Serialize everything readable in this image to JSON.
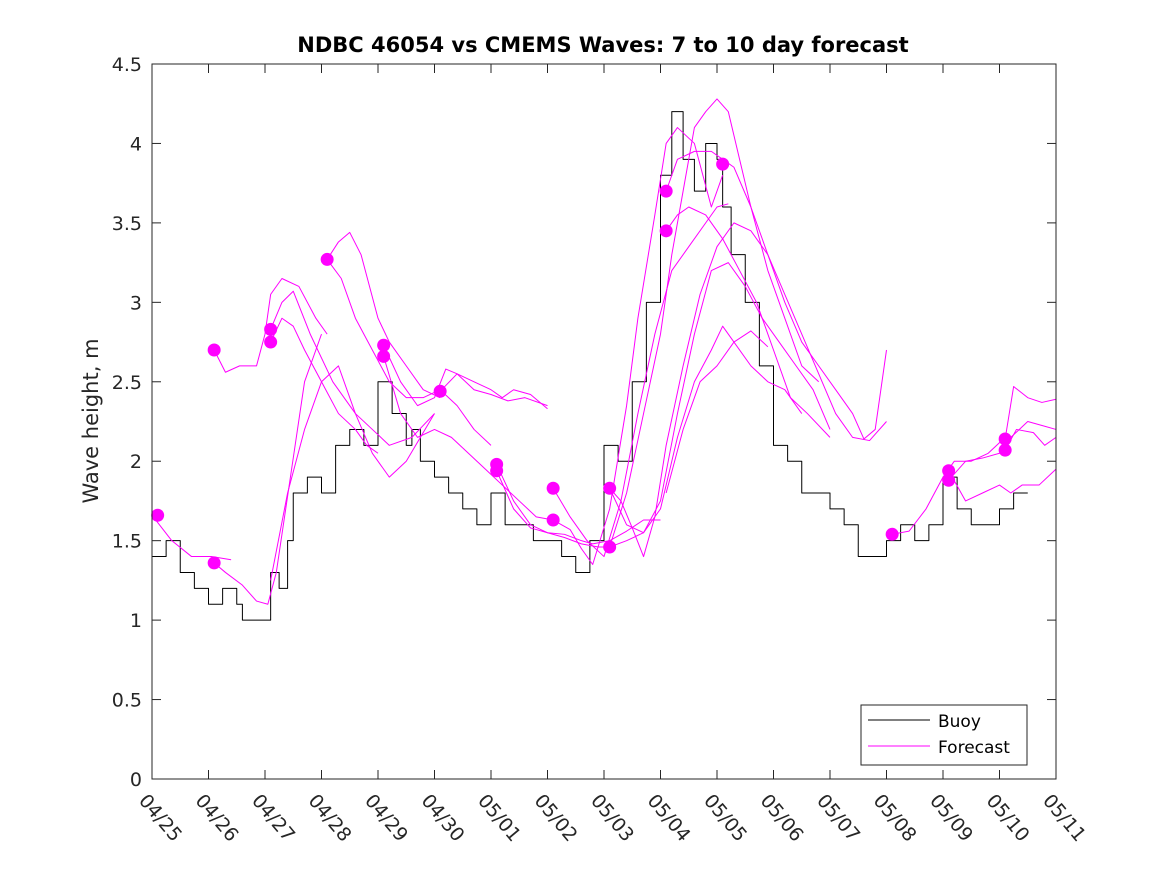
{
  "chart_data": {
    "type": "line",
    "title": "NDBC 46054 vs CMEMS Waves: 7 to 10 day forecast",
    "xlabel": "",
    "ylabel": "Wave height, m",
    "xlim": [
      0,
      16
    ],
    "ylim": [
      0,
      4.5
    ],
    "grid": false,
    "legend_position": "bottom-right",
    "x_tick_labels": [
      "04/25",
      "04/26",
      "04/27",
      "04/28",
      "04/29",
      "04/30",
      "05/01",
      "05/02",
      "05/03",
      "05/04",
      "05/05",
      "05/06",
      "05/07",
      "05/08",
      "05/09",
      "05/10",
      "05/11"
    ],
    "y_ticks": [
      0,
      0.5,
      1,
      1.5,
      2,
      2.5,
      3,
      3.5,
      4,
      4.5
    ],
    "y_tick_labels": [
      "0",
      "0.5",
      "1",
      "1.5",
      "2",
      "2.5",
      "3",
      "3.5",
      "4",
      "4.5"
    ],
    "colors": {
      "buoy": "#000000",
      "forecast": "#ff00ff"
    },
    "series": [
      {
        "name": "Buoy",
        "x": [
          0.0,
          0.25,
          0.5,
          0.6,
          0.75,
          1.0,
          1.25,
          1.5,
          1.6,
          1.75,
          2.0,
          2.1,
          2.25,
          2.4,
          2.5,
          2.75,
          3.0,
          3.25,
          3.5,
          3.75,
          4.0,
          4.25,
          4.5,
          4.6,
          4.75,
          5.0,
          5.25,
          5.5,
          5.75,
          6.0,
          6.25,
          6.5,
          6.75,
          7.0,
          7.25,
          7.5,
          7.75,
          8.0,
          8.25,
          8.5,
          8.75,
          9.0,
          9.2,
          9.4,
          9.6,
          9.8,
          10.0,
          10.1,
          10.25,
          10.5,
          10.75,
          11.0,
          11.25,
          11.5,
          11.75,
          12.0,
          12.25,
          12.5,
          12.75,
          13.0,
          13.25,
          13.5,
          13.75,
          14.0,
          14.25,
          14.5,
          14.75,
          15.0,
          15.25,
          15.5
        ],
        "y": [
          1.4,
          1.5,
          1.3,
          1.3,
          1.2,
          1.1,
          1.2,
          1.1,
          1.0,
          1.0,
          1.0,
          1.3,
          1.2,
          1.5,
          1.8,
          1.9,
          1.8,
          2.1,
          2.2,
          2.1,
          2.5,
          2.3,
          2.1,
          2.2,
          2.0,
          1.9,
          1.8,
          1.7,
          1.6,
          1.8,
          1.6,
          1.6,
          1.5,
          1.5,
          1.4,
          1.3,
          1.5,
          2.1,
          2.0,
          2.5,
          3.0,
          3.8,
          4.2,
          3.9,
          3.7,
          4.0,
          3.9,
          3.6,
          3.3,
          3.0,
          2.6,
          2.1,
          2.0,
          1.8,
          1.8,
          1.7,
          1.6,
          1.4,
          1.4,
          1.5,
          1.6,
          1.5,
          1.6,
          1.9,
          1.7,
          1.6,
          1.6,
          1.7,
          1.8,
          1.8
        ]
      },
      {
        "name": "Forecast",
        "x": [
          0.0,
          0.35,
          0.7,
          1.05,
          1.4
        ],
        "y": [
          1.66,
          1.5,
          1.4,
          1.4,
          1.38
        ]
      },
      {
        "name": "",
        "x": [
          1.1,
          1.3,
          1.6,
          1.85,
          2.05,
          2.2,
          2.45,
          2.7,
          3.0
        ],
        "y": [
          1.36,
          1.3,
          1.22,
          1.12,
          1.1,
          1.3,
          1.9,
          2.5,
          2.8
        ]
      },
      {
        "name": "",
        "x": [
          1.1,
          1.3,
          1.55,
          1.85,
          2.0,
          2.1,
          2.3,
          2.6,
          2.9,
          3.1
        ],
        "y": [
          2.7,
          2.56,
          2.6,
          2.6,
          2.8,
          3.05,
          3.15,
          3.1,
          2.9,
          2.8
        ]
      },
      {
        "name": "",
        "x": [
          2.1,
          2.3,
          2.5,
          2.8,
          3.2,
          3.6,
          3.9,
          4.2,
          4.6,
          5.0
        ],
        "y": [
          2.83,
          3.0,
          3.07,
          2.8,
          2.5,
          2.3,
          2.2,
          2.1,
          2.15,
          2.3
        ]
      },
      {
        "name": "",
        "x": [
          2.1,
          2.3,
          2.5,
          2.7,
          3.0,
          3.3,
          3.6,
          3.8,
          4.0
        ],
        "y": [
          2.75,
          2.9,
          2.85,
          2.7,
          2.5,
          2.3,
          2.2,
          2.1,
          2.05
        ]
      },
      {
        "name": "",
        "x": [
          2.1,
          2.4,
          2.7,
          3.0,
          3.3,
          3.6,
          3.9,
          4.2,
          4.5,
          5.0
        ],
        "y": [
          1.25,
          1.8,
          2.2,
          2.5,
          2.6,
          2.3,
          2.05,
          1.9,
          2.0,
          2.3
        ]
      },
      {
        "name": "",
        "x": [
          3.1,
          3.3,
          3.5,
          3.7,
          4.0,
          4.2,
          4.5,
          4.8,
          5.1
        ],
        "y": [
          3.27,
          3.38,
          3.44,
          3.3,
          2.9,
          2.75,
          2.6,
          2.45,
          2.4
        ]
      },
      {
        "name": "",
        "x": [
          3.1,
          3.35,
          3.6,
          3.9,
          4.2,
          4.5,
          4.8,
          5.1,
          5.4,
          5.7,
          6.0
        ],
        "y": [
          3.27,
          3.15,
          2.9,
          2.7,
          2.5,
          2.4,
          2.4,
          2.45,
          2.35,
          2.2,
          2.1
        ]
      },
      {
        "name": "",
        "x": [
          4.1,
          4.4,
          4.7,
          5.0,
          5.2,
          5.4,
          5.7,
          6.0,
          6.3,
          6.6,
          7.0
        ],
        "y": [
          2.73,
          2.5,
          2.35,
          2.4,
          2.58,
          2.55,
          2.45,
          2.42,
          2.38,
          2.4,
          2.35
        ]
      },
      {
        "name": "",
        "x": [
          4.1,
          4.4,
          4.7,
          5.0,
          5.3,
          5.6,
          5.9,
          6.2,
          6.5,
          6.8,
          7.1
        ],
        "y": [
          2.66,
          2.3,
          2.15,
          2.2,
          2.15,
          2.05,
          1.95,
          1.85,
          1.75,
          1.65,
          1.63
        ]
      },
      {
        "name": "",
        "x": [
          5.1,
          5.4,
          5.7,
          6.0,
          6.2,
          6.4,
          6.7,
          7.0
        ],
        "y": [
          2.44,
          2.55,
          2.5,
          2.45,
          2.4,
          2.45,
          2.42,
          2.33
        ]
      },
      {
        "name": "",
        "x": [
          6.1,
          6.4,
          6.7,
          7.0,
          7.3,
          7.6,
          7.9,
          8.1
        ],
        "y": [
          1.98,
          1.75,
          1.6,
          1.55,
          1.52,
          1.48,
          1.46,
          1.46
        ]
      },
      {
        "name": "",
        "x": [
          6.1,
          6.4,
          6.7,
          7.0,
          7.3,
          7.6,
          7.8,
          8.1,
          8.4,
          8.7,
          9.0
        ],
        "y": [
          1.94,
          1.7,
          1.58,
          1.55,
          1.54,
          1.5,
          1.48,
          1.5,
          1.56,
          1.63,
          1.63
        ]
      },
      {
        "name": "",
        "x": [
          7.1,
          7.4,
          7.7,
          8.0,
          8.3,
          8.6,
          8.9,
          9.2,
          9.5,
          9.8,
          10.0,
          10.2
        ],
        "y": [
          1.83,
          1.65,
          1.5,
          1.4,
          1.75,
          2.3,
          2.8,
          3.2,
          3.35,
          3.5,
          3.6,
          3.62
        ]
      },
      {
        "name": "",
        "x": [
          7.1,
          7.4,
          7.6,
          7.8,
          8.1,
          8.4,
          8.6,
          8.9,
          9.1,
          9.3,
          9.6,
          9.9,
          10.1
        ],
        "y": [
          1.63,
          1.57,
          1.45,
          1.35,
          1.7,
          2.35,
          2.9,
          3.55,
          4.0,
          4.1,
          4.0,
          3.6,
          3.8
        ]
      },
      {
        "name": "",
        "x": [
          8.1,
          8.4,
          8.7,
          9.0,
          9.2,
          9.4,
          9.6,
          9.8,
          10.0,
          10.2,
          10.4,
          10.6,
          10.9,
          11.2,
          11.5,
          11.8
        ],
        "y": [
          1.46,
          1.8,
          2.3,
          2.8,
          3.3,
          3.7,
          4.1,
          4.2,
          4.28,
          4.2,
          3.9,
          3.6,
          3.2,
          2.9,
          2.6,
          2.5
        ]
      },
      {
        "name": "",
        "x": [
          8.1,
          8.3,
          8.5,
          8.7,
          8.9,
          9.1,
          9.4,
          9.7,
          10.0,
          10.3,
          10.6,
          10.9,
          11.2,
          11.5,
          11.8,
          12.1,
          12.4,
          12.7,
          13.0
        ],
        "y": [
          1.83,
          1.75,
          1.58,
          1.4,
          1.65,
          2.1,
          2.6,
          3.05,
          3.35,
          3.5,
          3.45,
          3.3,
          3.05,
          2.8,
          2.55,
          2.3,
          2.15,
          2.13,
          2.25
        ]
      },
      {
        "name": "",
        "x": [
          9.1,
          9.3,
          9.6,
          9.9,
          10.1,
          10.3,
          10.6,
          10.9,
          11.2,
          11.5,
          11.8,
          12.1,
          12.4,
          12.6,
          12.8,
          13.0
        ],
        "y": [
          3.7,
          3.9,
          3.95,
          3.95,
          3.9,
          3.85,
          3.6,
          3.3,
          3.0,
          2.75,
          2.6,
          2.45,
          2.3,
          2.14,
          2.2,
          2.7
        ]
      },
      {
        "name": "",
        "x": [
          9.1,
          9.3,
          9.5,
          9.8,
          10.1,
          10.4,
          10.7,
          11.0,
          11.3,
          11.6,
          12.0
        ],
        "y": [
          3.45,
          3.55,
          3.6,
          3.55,
          3.4,
          3.2,
          3.0,
          2.7,
          2.4,
          2.3,
          2.15
        ]
      },
      {
        "name": "",
        "x": [
          8.1,
          8.4,
          8.7,
          9.0,
          9.3,
          9.6,
          9.9,
          10.2,
          10.5,
          10.8,
          11.1,
          11.4,
          11.7,
          12.0
        ],
        "y": [
          1.83,
          1.6,
          1.55,
          1.75,
          2.3,
          2.8,
          3.2,
          3.25,
          3.1,
          2.9,
          2.75,
          2.6,
          2.45,
          2.2
        ]
      },
      {
        "name": "",
        "x": [
          8.1,
          8.4,
          8.7,
          9.0,
          9.3,
          9.6,
          9.9,
          10.1,
          10.3,
          10.6,
          10.9,
          11.2,
          11.5
        ],
        "y": [
          1.46,
          1.5,
          1.55,
          1.7,
          2.15,
          2.5,
          2.7,
          2.85,
          2.75,
          2.6,
          2.5,
          2.45,
          2.3
        ]
      },
      {
        "name": "",
        "x": [
          9.1,
          9.4,
          9.7,
          10.0,
          10.3,
          10.6,
          10.9
        ],
        "y": [
          1.8,
          2.2,
          2.5,
          2.6,
          2.75,
          2.82,
          2.72
        ]
      },
      {
        "name": "",
        "x": [
          13.1,
          13.4,
          13.7,
          14.0,
          14.2,
          14.5,
          14.8,
          15.1
        ],
        "y": [
          1.54,
          1.56,
          1.7,
          1.9,
          2.0,
          2.0,
          2.05,
          2.15
        ]
      },
      {
        "name": "",
        "x": [
          14.1,
          14.4,
          14.7,
          15.0,
          15.2,
          15.4,
          15.7,
          16.0
        ],
        "y": [
          1.94,
          1.75,
          1.8,
          1.85,
          1.8,
          1.85,
          1.85,
          1.95
        ]
      },
      {
        "name": "",
        "x": [
          14.1,
          14.4,
          14.7,
          15.0,
          15.2,
          15.5,
          15.8,
          16.0
        ],
        "y": [
          1.88,
          2.0,
          2.02,
          2.05,
          2.15,
          2.25,
          2.22,
          2.2
        ]
      },
      {
        "name": "",
        "x": [
          15.1,
          15.25,
          15.5,
          15.75,
          16.0
        ],
        "y": [
          2.14,
          2.47,
          2.4,
          2.37,
          2.39
        ]
      },
      {
        "name": "",
        "x": [
          15.1,
          15.3,
          15.6,
          15.8,
          16.0
        ],
        "y": [
          2.07,
          2.2,
          2.18,
          2.1,
          2.15
        ]
      }
    ],
    "markers": {
      "x": [
        0.1,
        1.1,
        1.1,
        2.1,
        2.1,
        3.1,
        4.1,
        4.1,
        5.1,
        6.1,
        6.1,
        7.1,
        7.1,
        8.1,
        8.1,
        9.1,
        9.1,
        10.1,
        13.1,
        14.1,
        14.1,
        15.1,
        15.1
      ],
      "y": [
        1.66,
        2.7,
        1.36,
        2.83,
        2.75,
        3.27,
        2.73,
        2.66,
        2.44,
        1.98,
        1.94,
        1.83,
        1.63,
        1.83,
        1.46,
        3.7,
        3.45,
        3.87,
        1.54,
        1.94,
        1.88,
        2.14,
        2.07
      ]
    },
    "legend": [
      "Buoy",
      "Forecast"
    ]
  }
}
